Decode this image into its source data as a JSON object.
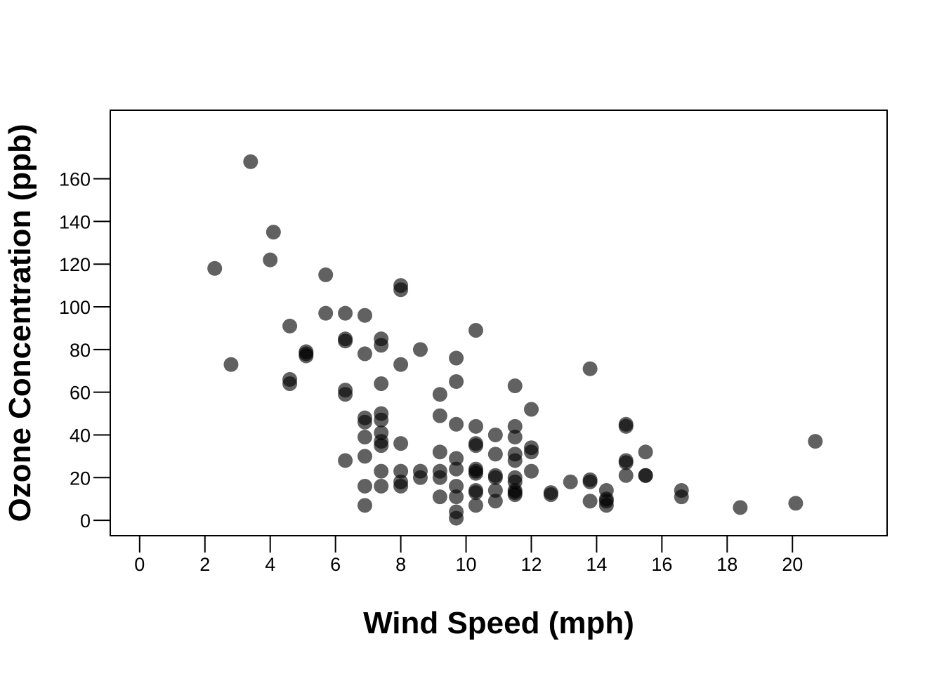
{
  "chart_data": {
    "type": "scatter",
    "title": "",
    "xlabel": "Wind Speed (mph)",
    "ylabel": "Ozone Concentration (ppb)",
    "xlim": [
      -0.9,
      22.9
    ],
    "ylim": [
      -7.2,
      192.1
    ],
    "xticks": [
      0,
      2,
      4,
      6,
      8,
      10,
      12,
      14,
      16,
      18,
      20
    ],
    "yticks": [
      0,
      20,
      40,
      60,
      80,
      100,
      120,
      140,
      160
    ],
    "grid": false,
    "legend": "none",
    "point_color": "#000000",
    "point_opacity": 0.62,
    "series": [
      {
        "points": [
          [
            2.3,
            118
          ],
          [
            2.8,
            73
          ],
          [
            3.4,
            168
          ],
          [
            4.0,
            122
          ],
          [
            4.1,
            135
          ],
          [
            4.6,
            91
          ],
          [
            4.6,
            66
          ],
          [
            4.6,
            64
          ],
          [
            5.1,
            79
          ],
          [
            5.1,
            78
          ],
          [
            5.1,
            77
          ],
          [
            5.7,
            115
          ],
          [
            5.7,
            97
          ],
          [
            6.3,
            97
          ],
          [
            6.3,
            85
          ],
          [
            6.3,
            84
          ],
          [
            6.3,
            61
          ],
          [
            6.3,
            59
          ],
          [
            6.3,
            28
          ],
          [
            6.9,
            96
          ],
          [
            6.9,
            78
          ],
          [
            6.9,
            48
          ],
          [
            6.9,
            46
          ],
          [
            6.9,
            39
          ],
          [
            6.9,
            30
          ],
          [
            6.9,
            16
          ],
          [
            6.9,
            7
          ],
          [
            7.4,
            85
          ],
          [
            7.4,
            82
          ],
          [
            7.4,
            64
          ],
          [
            7.4,
            50
          ],
          [
            7.4,
            47
          ],
          [
            7.4,
            41
          ],
          [
            7.4,
            37
          ],
          [
            7.4,
            35
          ],
          [
            7.4,
            23
          ],
          [
            7.4,
            16
          ],
          [
            8.0,
            110
          ],
          [
            8.0,
            108
          ],
          [
            8.0,
            73
          ],
          [
            8.0,
            36
          ],
          [
            8.0,
            23
          ],
          [
            8.0,
            18
          ],
          [
            8.0,
            16
          ],
          [
            8.6,
            80
          ],
          [
            8.6,
            23
          ],
          [
            8.6,
            20
          ],
          [
            9.2,
            59
          ],
          [
            9.2,
            49
          ],
          [
            9.2,
            32
          ],
          [
            9.2,
            23
          ],
          [
            9.2,
            20
          ],
          [
            9.2,
            11
          ],
          [
            9.7,
            76
          ],
          [
            9.7,
            65
          ],
          [
            9.7,
            45
          ],
          [
            9.7,
            29
          ],
          [
            9.7,
            24
          ],
          [
            9.7,
            16
          ],
          [
            9.7,
            11
          ],
          [
            9.7,
            4
          ],
          [
            9.7,
            1
          ],
          [
            10.3,
            89
          ],
          [
            10.3,
            44
          ],
          [
            10.3,
            36
          ],
          [
            10.3,
            35
          ],
          [
            10.3,
            24
          ],
          [
            10.3,
            23
          ],
          [
            10.3,
            22
          ],
          [
            10.3,
            14
          ],
          [
            10.3,
            13
          ],
          [
            10.3,
            7
          ],
          [
            10.9,
            40
          ],
          [
            10.9,
            31
          ],
          [
            10.9,
            21
          ],
          [
            10.9,
            20
          ],
          [
            10.9,
            14
          ],
          [
            10.9,
            9
          ],
          [
            11.5,
            63
          ],
          [
            11.5,
            44
          ],
          [
            11.5,
            39
          ],
          [
            11.5,
            31
          ],
          [
            11.5,
            28
          ],
          [
            11.5,
            20
          ],
          [
            11.5,
            18
          ],
          [
            11.5,
            14
          ],
          [
            11.5,
            13
          ],
          [
            11.5,
            12
          ],
          [
            12.0,
            52
          ],
          [
            12.0,
            34
          ],
          [
            12.0,
            32
          ],
          [
            12.0,
            23
          ],
          [
            12.6,
            13
          ],
          [
            12.6,
            12
          ],
          [
            13.2,
            18
          ],
          [
            13.8,
            71
          ],
          [
            13.8,
            19
          ],
          [
            13.8,
            18
          ],
          [
            13.8,
            9
          ],
          [
            14.3,
            14
          ],
          [
            14.3,
            10
          ],
          [
            14.3,
            9
          ],
          [
            14.3,
            7
          ],
          [
            14.9,
            45
          ],
          [
            14.9,
            44
          ],
          [
            14.9,
            28
          ],
          [
            14.9,
            27
          ],
          [
            14.9,
            21
          ],
          [
            15.5,
            32
          ],
          [
            15.5,
            21
          ],
          [
            15.5,
            21
          ],
          [
            16.6,
            14
          ],
          [
            16.6,
            11
          ],
          [
            18.4,
            6
          ],
          [
            20.1,
            8
          ],
          [
            20.7,
            37
          ]
        ]
      }
    ]
  }
}
